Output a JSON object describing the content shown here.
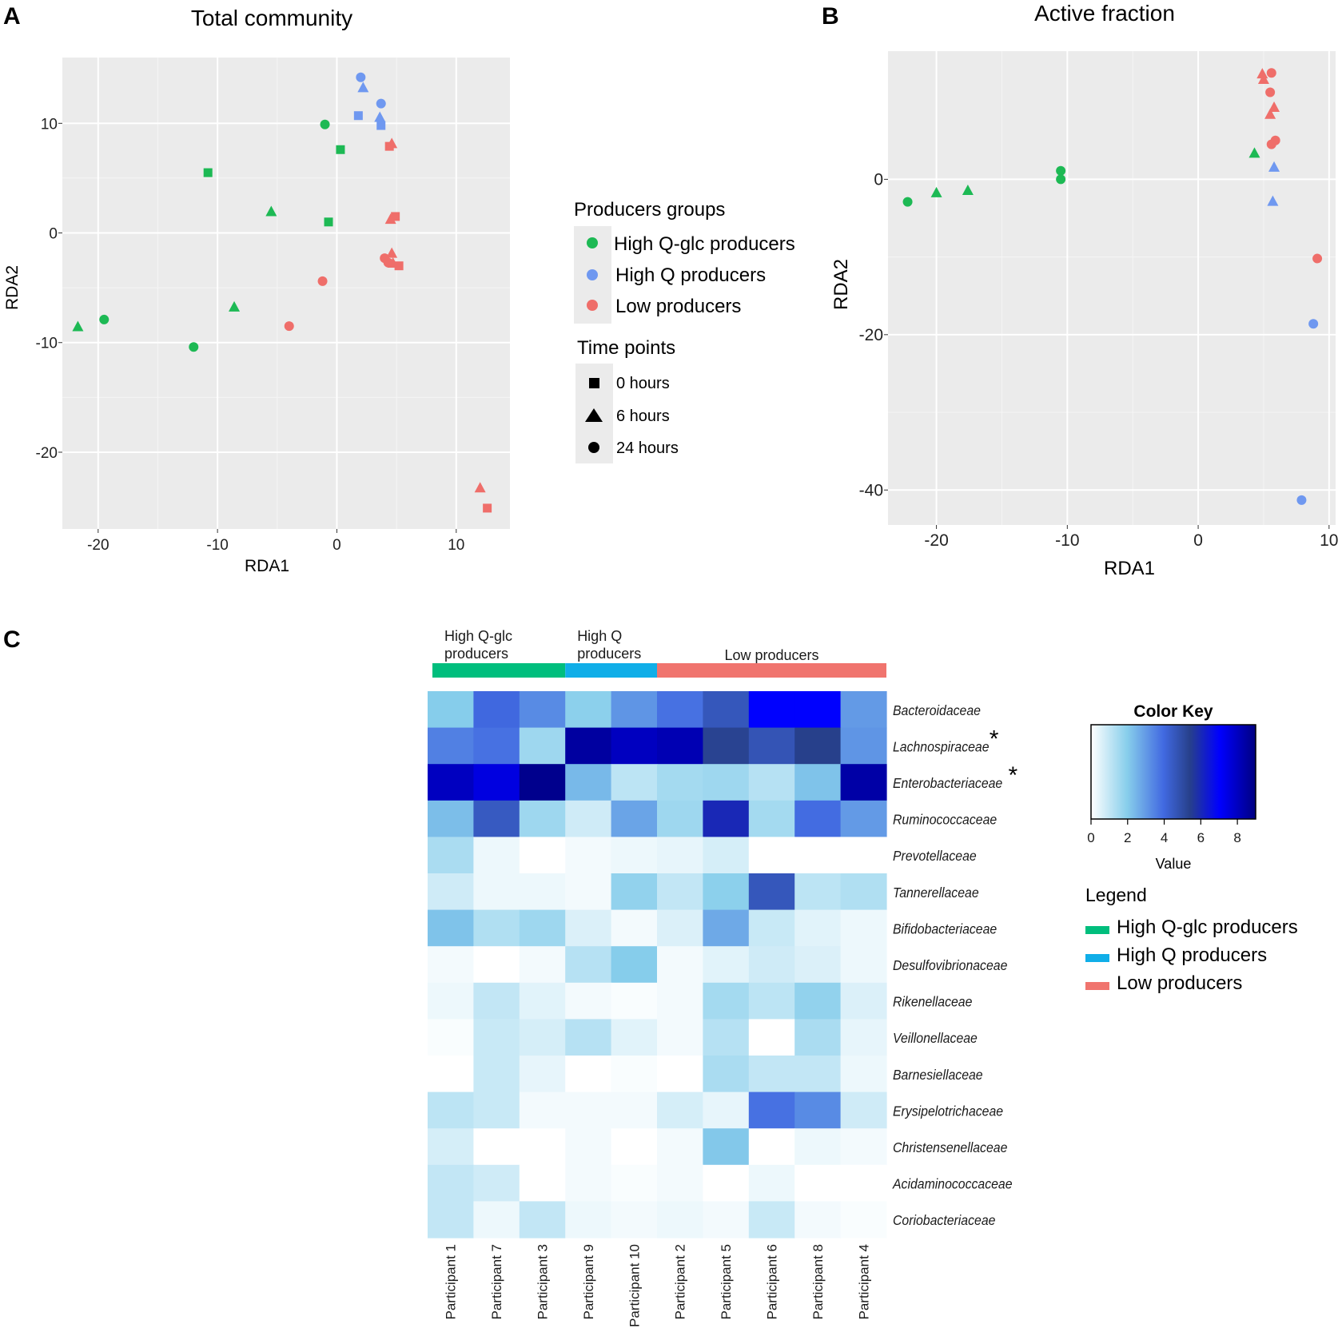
{
  "panels": {
    "A": {
      "letter": "A",
      "title": "Total community",
      "xlabel": "RDA1",
      "ylabel": "RDA2",
      "xticks": [
        -20,
        -10,
        0,
        10
      ],
      "yticks": [
        -20,
        -10,
        0,
        10
      ]
    },
    "B": {
      "letter": "B",
      "title": "Active fraction",
      "xlabel": "RDA1",
      "ylabel": "RDA2",
      "xticks": [
        -20,
        -10,
        0,
        10
      ],
      "yticks": [
        -40,
        -20,
        0
      ]
    },
    "C": {
      "letter": "C"
    }
  },
  "legend_ab": {
    "groups_title": "Producers groups",
    "groups": [
      {
        "label": "High Q-glc producers",
        "color": "#1db954"
      },
      {
        "label": "High Q producers",
        "color": "#6f98f0"
      },
      {
        "label": "Low producers",
        "color": "#ef6e6a"
      }
    ],
    "time_title": "Time points",
    "times": [
      {
        "label": "0 hours",
        "shape": "square"
      },
      {
        "label": "6 hours",
        "shape": "triangle"
      },
      {
        "label": "24 hours",
        "shape": "circle"
      }
    ]
  },
  "heatmap_legend": {
    "color_key_title": "Color Key",
    "value_label": "Value",
    "ticks": [
      0,
      2,
      4,
      6,
      8
    ],
    "legend_title": "Legend",
    "groups": [
      {
        "label": "High Q-glc producers",
        "color": "#00be7d"
      },
      {
        "label": "High Q producers",
        "color": "#10aee8"
      },
      {
        "label": "Low producers",
        "color": "#f0746e"
      }
    ]
  },
  "chart_data": [
    {
      "id": "A",
      "type": "scatter",
      "title": "Total community",
      "xlabel": "RDA1",
      "ylabel": "RDA2",
      "xlim": [
        -23,
        14.5
      ],
      "ylim": [
        -27,
        16
      ],
      "points": [
        {
          "x": 2.0,
          "y": 14.2,
          "group": 1,
          "shape": "circle"
        },
        {
          "x": 2.2,
          "y": 13.2,
          "group": 1,
          "shape": "triangle"
        },
        {
          "x": 3.7,
          "y": 11.8,
          "group": 1,
          "shape": "circle"
        },
        {
          "x": 1.8,
          "y": 10.7,
          "group": 1,
          "shape": "square"
        },
        {
          "x": 3.6,
          "y": 10.5,
          "group": 1,
          "shape": "triangle"
        },
        {
          "x": 3.7,
          "y": 9.8,
          "group": 1,
          "shape": "square"
        },
        {
          "x": -1.0,
          "y": 9.9,
          "group": 0,
          "shape": "circle"
        },
        {
          "x": 0.3,
          "y": 7.6,
          "group": 0,
          "shape": "square"
        },
        {
          "x": 4.4,
          "y": 7.9,
          "group": 2,
          "shape": "square"
        },
        {
          "x": 4.6,
          "y": 8.1,
          "group": 2,
          "shape": "triangle"
        },
        {
          "x": -10.8,
          "y": 5.5,
          "group": 0,
          "shape": "square"
        },
        {
          "x": -5.5,
          "y": 1.9,
          "group": 0,
          "shape": "triangle"
        },
        {
          "x": -0.7,
          "y": 1.0,
          "group": 0,
          "shape": "square"
        },
        {
          "x": 4.9,
          "y": 1.5,
          "group": 2,
          "shape": "square"
        },
        {
          "x": 4.5,
          "y": 1.2,
          "group": 2,
          "shape": "triangle"
        },
        {
          "x": 4.6,
          "y": -1.9,
          "group": 2,
          "shape": "triangle"
        },
        {
          "x": 4.0,
          "y": -2.3,
          "group": 2,
          "shape": "circle"
        },
        {
          "x": 4.3,
          "y": -2.7,
          "group": 2,
          "shape": "circle"
        },
        {
          "x": 4.7,
          "y": -2.8,
          "group": 2,
          "shape": "triangle"
        },
        {
          "x": 5.2,
          "y": -3.0,
          "group": 2,
          "shape": "square"
        },
        {
          "x": -1.2,
          "y": -4.4,
          "group": 2,
          "shape": "circle"
        },
        {
          "x": -8.6,
          "y": -6.8,
          "group": 0,
          "shape": "triangle"
        },
        {
          "x": -19.5,
          "y": -7.9,
          "group": 0,
          "shape": "circle"
        },
        {
          "x": -21.7,
          "y": -8.6,
          "group": 0,
          "shape": "triangle"
        },
        {
          "x": -4.0,
          "y": -8.5,
          "group": 2,
          "shape": "circle"
        },
        {
          "x": -12.0,
          "y": -10.4,
          "group": 0,
          "shape": "circle"
        },
        {
          "x": 12.0,
          "y": -23.3,
          "group": 2,
          "shape": "triangle"
        },
        {
          "x": 12.6,
          "y": -25.1,
          "group": 2,
          "shape": "square"
        }
      ]
    },
    {
      "id": "B",
      "type": "scatter",
      "title": "Active fraction",
      "xlabel": "RDA1",
      "ylabel": "RDA2",
      "xlim": [
        -23.7,
        10.5
      ],
      "ylim": [
        -44.5,
        16.5
      ],
      "points": [
        {
          "x": 4.9,
          "y": 13.5,
          "group": 2,
          "shape": "triangle"
        },
        {
          "x": 5.6,
          "y": 13.7,
          "group": 2,
          "shape": "circle"
        },
        {
          "x": 5.0,
          "y": 12.8,
          "group": 2,
          "shape": "triangle"
        },
        {
          "x": 5.5,
          "y": 11.2,
          "group": 2,
          "shape": "circle"
        },
        {
          "x": 5.8,
          "y": 9.2,
          "group": 2,
          "shape": "triangle"
        },
        {
          "x": 5.5,
          "y": 8.3,
          "group": 2,
          "shape": "triangle"
        },
        {
          "x": 5.9,
          "y": 5.0,
          "group": 2,
          "shape": "circle"
        },
        {
          "x": 5.6,
          "y": 4.5,
          "group": 2,
          "shape": "circle"
        },
        {
          "x": 4.3,
          "y": 3.3,
          "group": 0,
          "shape": "triangle"
        },
        {
          "x": 5.8,
          "y": 1.5,
          "group": 1,
          "shape": "triangle"
        },
        {
          "x": -10.5,
          "y": 1.1,
          "group": 0,
          "shape": "circle"
        },
        {
          "x": -10.5,
          "y": 0.0,
          "group": 0,
          "shape": "circle"
        },
        {
          "x": -17.6,
          "y": -1.5,
          "group": 0,
          "shape": "triangle"
        },
        {
          "x": -20.0,
          "y": -1.8,
          "group": 0,
          "shape": "triangle"
        },
        {
          "x": -22.2,
          "y": -2.9,
          "group": 0,
          "shape": "circle"
        },
        {
          "x": 5.7,
          "y": -2.9,
          "group": 1,
          "shape": "triangle"
        },
        {
          "x": 9.1,
          "y": -10.2,
          "group": 2,
          "shape": "circle"
        },
        {
          "x": 8.8,
          "y": -18.6,
          "group": 1,
          "shape": "circle"
        },
        {
          "x": 7.9,
          "y": -41.3,
          "group": 1,
          "shape": "circle"
        }
      ]
    },
    {
      "id": "C",
      "type": "heatmap",
      "color_key_range": [
        0,
        9
      ],
      "columns": [
        "Participant 1",
        "Participant 7",
        "Participant 3",
        "Participant 9",
        "Participant 10",
        "Participant 2",
        "Participant 5",
        "Participant 6",
        "Participant 8",
        "Participant 4"
      ],
      "column_groups": [
        {
          "label": "High Q-glc\nproducers",
          "label_lines": [
            "High Q-glc",
            "producers"
          ],
          "span": [
            0,
            3
          ],
          "group": 0
        },
        {
          "label": "High Q\nproducers",
          "label_lines": [
            "High Q",
            "producers"
          ],
          "span": [
            3,
            5
          ],
          "group": 1
        },
        {
          "label": "Low producers",
          "label_lines": [
            "Low producers"
          ],
          "span": [
            5,
            10
          ],
          "group": 2
        }
      ],
      "rows": [
        {
          "label": "Bacteroidaceae",
          "starred": false
        },
        {
          "label": "Lachnospiraceae",
          "starred": true
        },
        {
          "label": "Enterobacteriaceae",
          "starred": true
        },
        {
          "label": "Ruminococcaceae",
          "starred": false
        },
        {
          "label": "Prevotellaceae",
          "starred": false
        },
        {
          "label": "Tannerellaceae",
          "starred": false
        },
        {
          "label": "Bifidobacteriaceae",
          "starred": false
        },
        {
          "label": "Desulfovibrionaceae",
          "starred": false
        },
        {
          "label": "Rikenellaceae",
          "starred": false
        },
        {
          "label": "Veillonellaceae",
          "starred": false
        },
        {
          "label": "Barnesiellaceae",
          "starred": false
        },
        {
          "label": "Erysipelotrichaceae",
          "starred": false
        },
        {
          "label": "Christensenellaceae",
          "starred": false
        },
        {
          "label": "Acidaminococcaceae",
          "starred": false
        },
        {
          "label": "Coriobacteriaceae",
          "starred": false
        }
      ],
      "star_symbol": "*",
      "values": [
        [
          2.0,
          4.0,
          3.3,
          1.9,
          3.1,
          3.8,
          4.6,
          7.0,
          7.0,
          3.0
        ],
        [
          3.5,
          3.8,
          1.6,
          8.5,
          8.0,
          8.2,
          5.3,
          4.7,
          5.4,
          3.1
        ],
        [
          8.0,
          7.5,
          8.8,
          2.4,
          1.1,
          1.5,
          1.6,
          1.2,
          2.2,
          8.4
        ],
        [
          2.3,
          4.5,
          1.6,
          0.8,
          2.8,
          1.6,
          6.0,
          1.5,
          3.9,
          3.0
        ],
        [
          1.4,
          0.3,
          0.0,
          0.2,
          0.3,
          0.4,
          0.7,
          0.0,
          0.0,
          0.0
        ],
        [
          0.8,
          0.3,
          0.3,
          0.2,
          1.8,
          1.0,
          1.9,
          4.6,
          1.1,
          1.3
        ],
        [
          2.2,
          1.3,
          1.6,
          0.6,
          0.2,
          0.6,
          2.7,
          0.9,
          0.5,
          0.3
        ],
        [
          0.2,
          0.0,
          0.2,
          1.2,
          2.0,
          0.2,
          0.5,
          0.8,
          0.6,
          0.3
        ],
        [
          0.3,
          1.0,
          0.5,
          0.2,
          0.1,
          0.2,
          1.5,
          1.1,
          1.8,
          0.6
        ],
        [
          0.1,
          0.9,
          0.7,
          1.2,
          0.5,
          0.2,
          1.2,
          0.0,
          1.4,
          0.4
        ],
        [
          0.0,
          0.9,
          0.4,
          0.0,
          0.1,
          0.0,
          1.4,
          1.0,
          1.0,
          0.3
        ],
        [
          1.1,
          0.9,
          0.2,
          0.2,
          0.2,
          0.7,
          0.4,
          3.8,
          3.3,
          0.8
        ],
        [
          0.7,
          0.0,
          0.0,
          0.2,
          0.0,
          0.2,
          2.1,
          0.0,
          0.3,
          0.2
        ],
        [
          1.0,
          0.8,
          0.0,
          0.2,
          0.1,
          0.2,
          0.0,
          0.3,
          0.0,
          0.0
        ],
        [
          1.0,
          0.3,
          1.0,
          0.3,
          0.2,
          0.3,
          0.2,
          0.9,
          0.2,
          0.1
        ]
      ]
    }
  ]
}
